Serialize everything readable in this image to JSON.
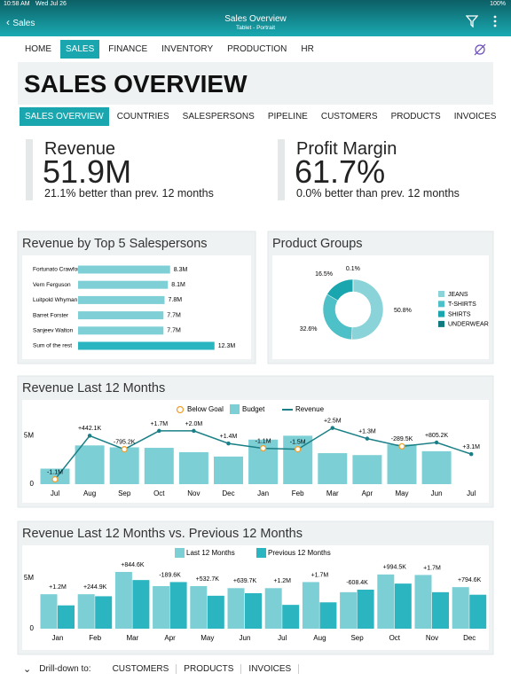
{
  "status_bar": {
    "time": "10:58 AM",
    "date": "Wed Jul 26",
    "battery": "100%"
  },
  "header": {
    "back": "Sales",
    "title": "Sales Overview",
    "subtitle": "Tablet - Portrait"
  },
  "nav": {
    "items": [
      "HOME",
      "SALES",
      "FINANCE",
      "INVENTORY",
      "PRODUCTION",
      "HR"
    ],
    "active": 1
  },
  "page_title": "SALES OVERVIEW",
  "tabs": {
    "items": [
      "SALES OVERVIEW",
      "COUNTRIES",
      "SALESPERSONS",
      "PIPELINE",
      "CUSTOMERS",
      "PRODUCTS",
      "INVOICES"
    ],
    "active": 0
  },
  "kpis": [
    {
      "label": "Revenue",
      "value": "51.9M",
      "note": "21.1% better than prev. 12 months"
    },
    {
      "label": "Profit Margin",
      "value": "61.7%",
      "note": "0.0% better than prev. 12 months"
    }
  ],
  "chart_data": [
    {
      "type": "barh",
      "title": "Revenue by Top 5 Salespersons",
      "categories": [
        "Fortunato Crawford",
        "Vern Ferguson",
        "Luitpold Whyman",
        "Barret Forster",
        "Sanjeev Walton",
        "Sum of the rest"
      ],
      "values": [
        8.3,
        8.1,
        7.8,
        7.7,
        7.7,
        12.3
      ],
      "value_labels": [
        "8.3M",
        "8.1M",
        "7.8M",
        "7.7M",
        "7.7M",
        "12.3M"
      ],
      "colors": [
        "#7fd0d6",
        "#7fd0d6",
        "#7fd0d6",
        "#7fd0d6",
        "#7fd0d6",
        "#2bb5c0"
      ]
    },
    {
      "type": "pie",
      "donut": true,
      "title": "Product Groups",
      "categories": [
        "JEANS",
        "T-SHIRTS",
        "SHIRTS",
        "UNDERWEAR"
      ],
      "values": [
        50.8,
        32.6,
        16.5,
        0.1
      ],
      "value_labels": [
        "50.8%",
        "32.6%",
        "16.5%",
        "0.1%"
      ],
      "colors": [
        "#8ad3d8",
        "#4ec0c8",
        "#1aa6ae",
        "#0e7a80"
      ]
    },
    {
      "type": "combo",
      "title": "Revenue Last 12 Months",
      "categories": [
        "Jul",
        "Aug",
        "Sep",
        "Oct",
        "Nov",
        "Dec",
        "Jan",
        "Feb",
        "Mar",
        "Apr",
        "May",
        "Jun",
        "Jul"
      ],
      "below_goal": {
        "name": "Below Goal",
        "color": "#f0a030"
      },
      "series": [
        {
          "name": "Budget",
          "kind": "bar",
          "color": "#7ccfd5",
          "values": [
            1.6,
            4.0,
            3.8,
            3.75,
            3.3,
            2.85,
            4.6,
            5.0,
            3.2,
            3.0,
            4.1,
            3.4,
            null
          ]
        },
        {
          "name": "Revenue",
          "kind": "line",
          "color": "#1a7f86",
          "values": [
            0.5,
            5.0,
            3.6,
            5.5,
            5.5,
            4.2,
            3.7,
            3.6,
            5.8,
            4.7,
            3.9,
            4.3,
            3.1
          ],
          "point_labels": [
            "-1.1M",
            "+442.1K",
            "-795.2K",
            "+1.7M",
            "+2.0M",
            "+1.4M",
            "-1.1M",
            "-1.5M",
            "+2.5M",
            "+1.3M",
            "-289.5K",
            "+805.2K",
            "+3.1M"
          ]
        }
      ],
      "ylim": [
        0,
        6.5
      ],
      "yticks": [
        0,
        {
          "value": 5,
          "label": "5M"
        }
      ]
    },
    {
      "type": "bar",
      "title": "Revenue Last 12 Months vs. Previous 12 Months",
      "categories": [
        "Jan",
        "Feb",
        "Mar",
        "Apr",
        "May",
        "Jun",
        "Jul",
        "Aug",
        "Sep",
        "Oct",
        "Nov",
        "Dec"
      ],
      "series": [
        {
          "name": "Last 12 Months",
          "color": "#7ccfd5",
          "values": [
            3.4,
            3.4,
            5.6,
            4.2,
            4.2,
            4.0,
            4.0,
            4.6,
            3.6,
            5.35,
            5.3,
            4.1
          ]
        },
        {
          "name": "Previous 12 Months",
          "color": "#2bb5c0",
          "values": [
            2.3,
            3.2,
            4.8,
            4.6,
            3.25,
            3.5,
            2.35,
            2.6,
            3.85,
            4.45,
            3.6,
            3.35
          ]
        }
      ],
      "pair_labels": [
        "+1.2M",
        "+244.9K",
        "+844.6K",
        "-189.6K",
        "+532.7K",
        "+639.7K",
        "+1.2M",
        "+1.7M",
        "-608.4K",
        "+994.5K",
        "+1.7M",
        "+794.6K"
      ],
      "ylim": [
        0,
        6.3
      ],
      "yticks": [
        0,
        {
          "value": 5,
          "label": "5M"
        }
      ]
    }
  ],
  "footer": {
    "label": "Drill-down to:",
    "links": [
      "CUSTOMERS",
      "PRODUCTS",
      "INVOICES"
    ]
  }
}
